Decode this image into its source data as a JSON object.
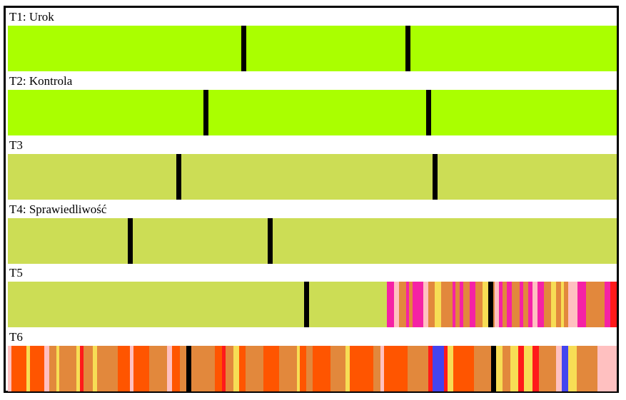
{
  "colors": {
    "bright_green": "#aaff00",
    "lime": "#ccdd55",
    "orange": "#e2883c",
    "dark_orange": "#ff5500",
    "pink": "#f522a5",
    "light_pink": "#ffc0c0",
    "yellow": "#f7dd55",
    "red": "#ff1a1a",
    "blue": "#4444ee"
  },
  "tracks": [
    {
      "label": "T1: Urok",
      "base": "bright_green",
      "markers": [
        0.387,
        0.657
      ],
      "segments": []
    },
    {
      "label": "T2: Kontrola",
      "base": "bright_green",
      "markers": [
        0.325,
        0.691
      ],
      "segments": []
    },
    {
      "label": "T3",
      "base": "lime",
      "markers": [
        0.28,
        0.701
      ],
      "segments": []
    },
    {
      "label": "T4: Sprawiedliwość",
      "base": "lime",
      "markers": [
        0.2,
        0.43
      ],
      "segments": []
    },
    {
      "label": "T5",
      "base": "lime",
      "markers": [
        0.49,
        0.793
      ],
      "segments": [
        [
          0.622,
          0.634,
          "pink"
        ],
        [
          0.634,
          0.642,
          "light_pink"
        ],
        [
          0.642,
          0.654,
          "orange"
        ],
        [
          0.654,
          0.659,
          "pink"
        ],
        [
          0.659,
          0.665,
          "orange"
        ],
        [
          0.665,
          0.682,
          "pink"
        ],
        [
          0.682,
          0.69,
          "light_pink"
        ],
        [
          0.69,
          0.701,
          "orange"
        ],
        [
          0.701,
          0.712,
          "yellow"
        ],
        [
          0.712,
          0.73,
          "orange"
        ],
        [
          0.73,
          0.735,
          "pink"
        ],
        [
          0.735,
          0.742,
          "orange"
        ],
        [
          0.742,
          0.748,
          "pink"
        ],
        [
          0.748,
          0.758,
          "orange"
        ],
        [
          0.758,
          0.768,
          "pink"
        ],
        [
          0.768,
          0.78,
          "orange"
        ],
        [
          0.78,
          0.793,
          "yellow"
        ],
        [
          0.793,
          0.8,
          "orange"
        ],
        [
          0.8,
          0.806,
          "light_pink"
        ],
        [
          0.806,
          0.812,
          "pink"
        ],
        [
          0.812,
          0.82,
          "orange"
        ],
        [
          0.82,
          0.828,
          "pink"
        ],
        [
          0.828,
          0.84,
          "orange"
        ],
        [
          0.84,
          0.846,
          "pink"
        ],
        [
          0.846,
          0.855,
          "orange"
        ],
        [
          0.855,
          0.862,
          "pink"
        ],
        [
          0.862,
          0.87,
          "light_pink"
        ],
        [
          0.87,
          0.88,
          "pink"
        ],
        [
          0.88,
          0.892,
          "orange"
        ],
        [
          0.892,
          0.9,
          "yellow"
        ],
        [
          0.9,
          0.908,
          "orange"
        ],
        [
          0.908,
          0.913,
          "yellow"
        ],
        [
          0.913,
          0.92,
          "orange"
        ],
        [
          0.92,
          0.935,
          "light_pink"
        ],
        [
          0.935,
          0.95,
          "pink"
        ],
        [
          0.95,
          0.963,
          "orange"
        ],
        [
          0.963,
          0.98,
          "orange"
        ],
        [
          0.98,
          0.99,
          "pink"
        ],
        [
          0.99,
          1.0,
          "red"
        ]
      ]
    },
    {
      "label": "T6",
      "base": "orange",
      "markers": [
        0.297,
        0.797
      ],
      "segments": [
        [
          0.0,
          0.006,
          "light_pink"
        ],
        [
          0.006,
          0.03,
          "dark_orange"
        ],
        [
          0.03,
          0.036,
          "yellow"
        ],
        [
          0.036,
          0.06,
          "dark_orange"
        ],
        [
          0.06,
          0.068,
          "light_pink"
        ],
        [
          0.068,
          0.08,
          "orange"
        ],
        [
          0.08,
          0.084,
          "yellow"
        ],
        [
          0.084,
          0.112,
          "orange"
        ],
        [
          0.112,
          0.118,
          "yellow"
        ],
        [
          0.118,
          0.124,
          "red"
        ],
        [
          0.124,
          0.14,
          "orange"
        ],
        [
          0.14,
          0.146,
          "yellow"
        ],
        [
          0.146,
          0.18,
          "orange"
        ],
        [
          0.18,
          0.2,
          "dark_orange"
        ],
        [
          0.2,
          0.206,
          "light_pink"
        ],
        [
          0.206,
          0.232,
          "dark_orange"
        ],
        [
          0.232,
          0.262,
          "orange"
        ],
        [
          0.262,
          0.27,
          "light_pink"
        ],
        [
          0.27,
          0.282,
          "dark_orange"
        ],
        [
          0.282,
          0.34,
          "orange"
        ],
        [
          0.34,
          0.352,
          "dark_orange"
        ],
        [
          0.352,
          0.358,
          "red"
        ],
        [
          0.358,
          0.37,
          "orange"
        ],
        [
          0.37,
          0.38,
          "yellow"
        ],
        [
          0.38,
          0.39,
          "dark_orange"
        ],
        [
          0.39,
          0.42,
          "orange"
        ],
        [
          0.42,
          0.445,
          "dark_orange"
        ],
        [
          0.445,
          0.475,
          "orange"
        ],
        [
          0.475,
          0.48,
          "yellow"
        ],
        [
          0.48,
          0.49,
          "dark_orange"
        ],
        [
          0.49,
          0.5,
          "orange"
        ],
        [
          0.5,
          0.53,
          "dark_orange"
        ],
        [
          0.53,
          0.555,
          "orange"
        ],
        [
          0.555,
          0.562,
          "yellow"
        ],
        [
          0.562,
          0.6,
          "dark_orange"
        ],
        [
          0.6,
          0.612,
          "orange"
        ],
        [
          0.612,
          0.618,
          "light_pink"
        ],
        [
          0.618,
          0.656,
          "dark_orange"
        ],
        [
          0.656,
          0.69,
          "orange"
        ],
        [
          0.69,
          0.698,
          "red"
        ],
        [
          0.698,
          0.716,
          "blue"
        ],
        [
          0.716,
          0.722,
          "red"
        ],
        [
          0.722,
          0.732,
          "yellow"
        ],
        [
          0.732,
          0.765,
          "dark_orange"
        ],
        [
          0.765,
          0.797,
          "orange"
        ],
        [
          0.797,
          0.812,
          "yellow"
        ],
        [
          0.812,
          0.825,
          "orange"
        ],
        [
          0.825,
          0.838,
          "yellow"
        ],
        [
          0.838,
          0.848,
          "red"
        ],
        [
          0.848,
          0.862,
          "yellow"
        ],
        [
          0.862,
          0.872,
          "red"
        ],
        [
          0.872,
          0.9,
          "orange"
        ],
        [
          0.9,
          0.91,
          "light_pink"
        ],
        [
          0.91,
          0.92,
          "blue"
        ],
        [
          0.92,
          0.934,
          "yellow"
        ],
        [
          0.934,
          0.968,
          "orange"
        ],
        [
          0.968,
          1.0,
          "light_pink"
        ]
      ]
    }
  ]
}
